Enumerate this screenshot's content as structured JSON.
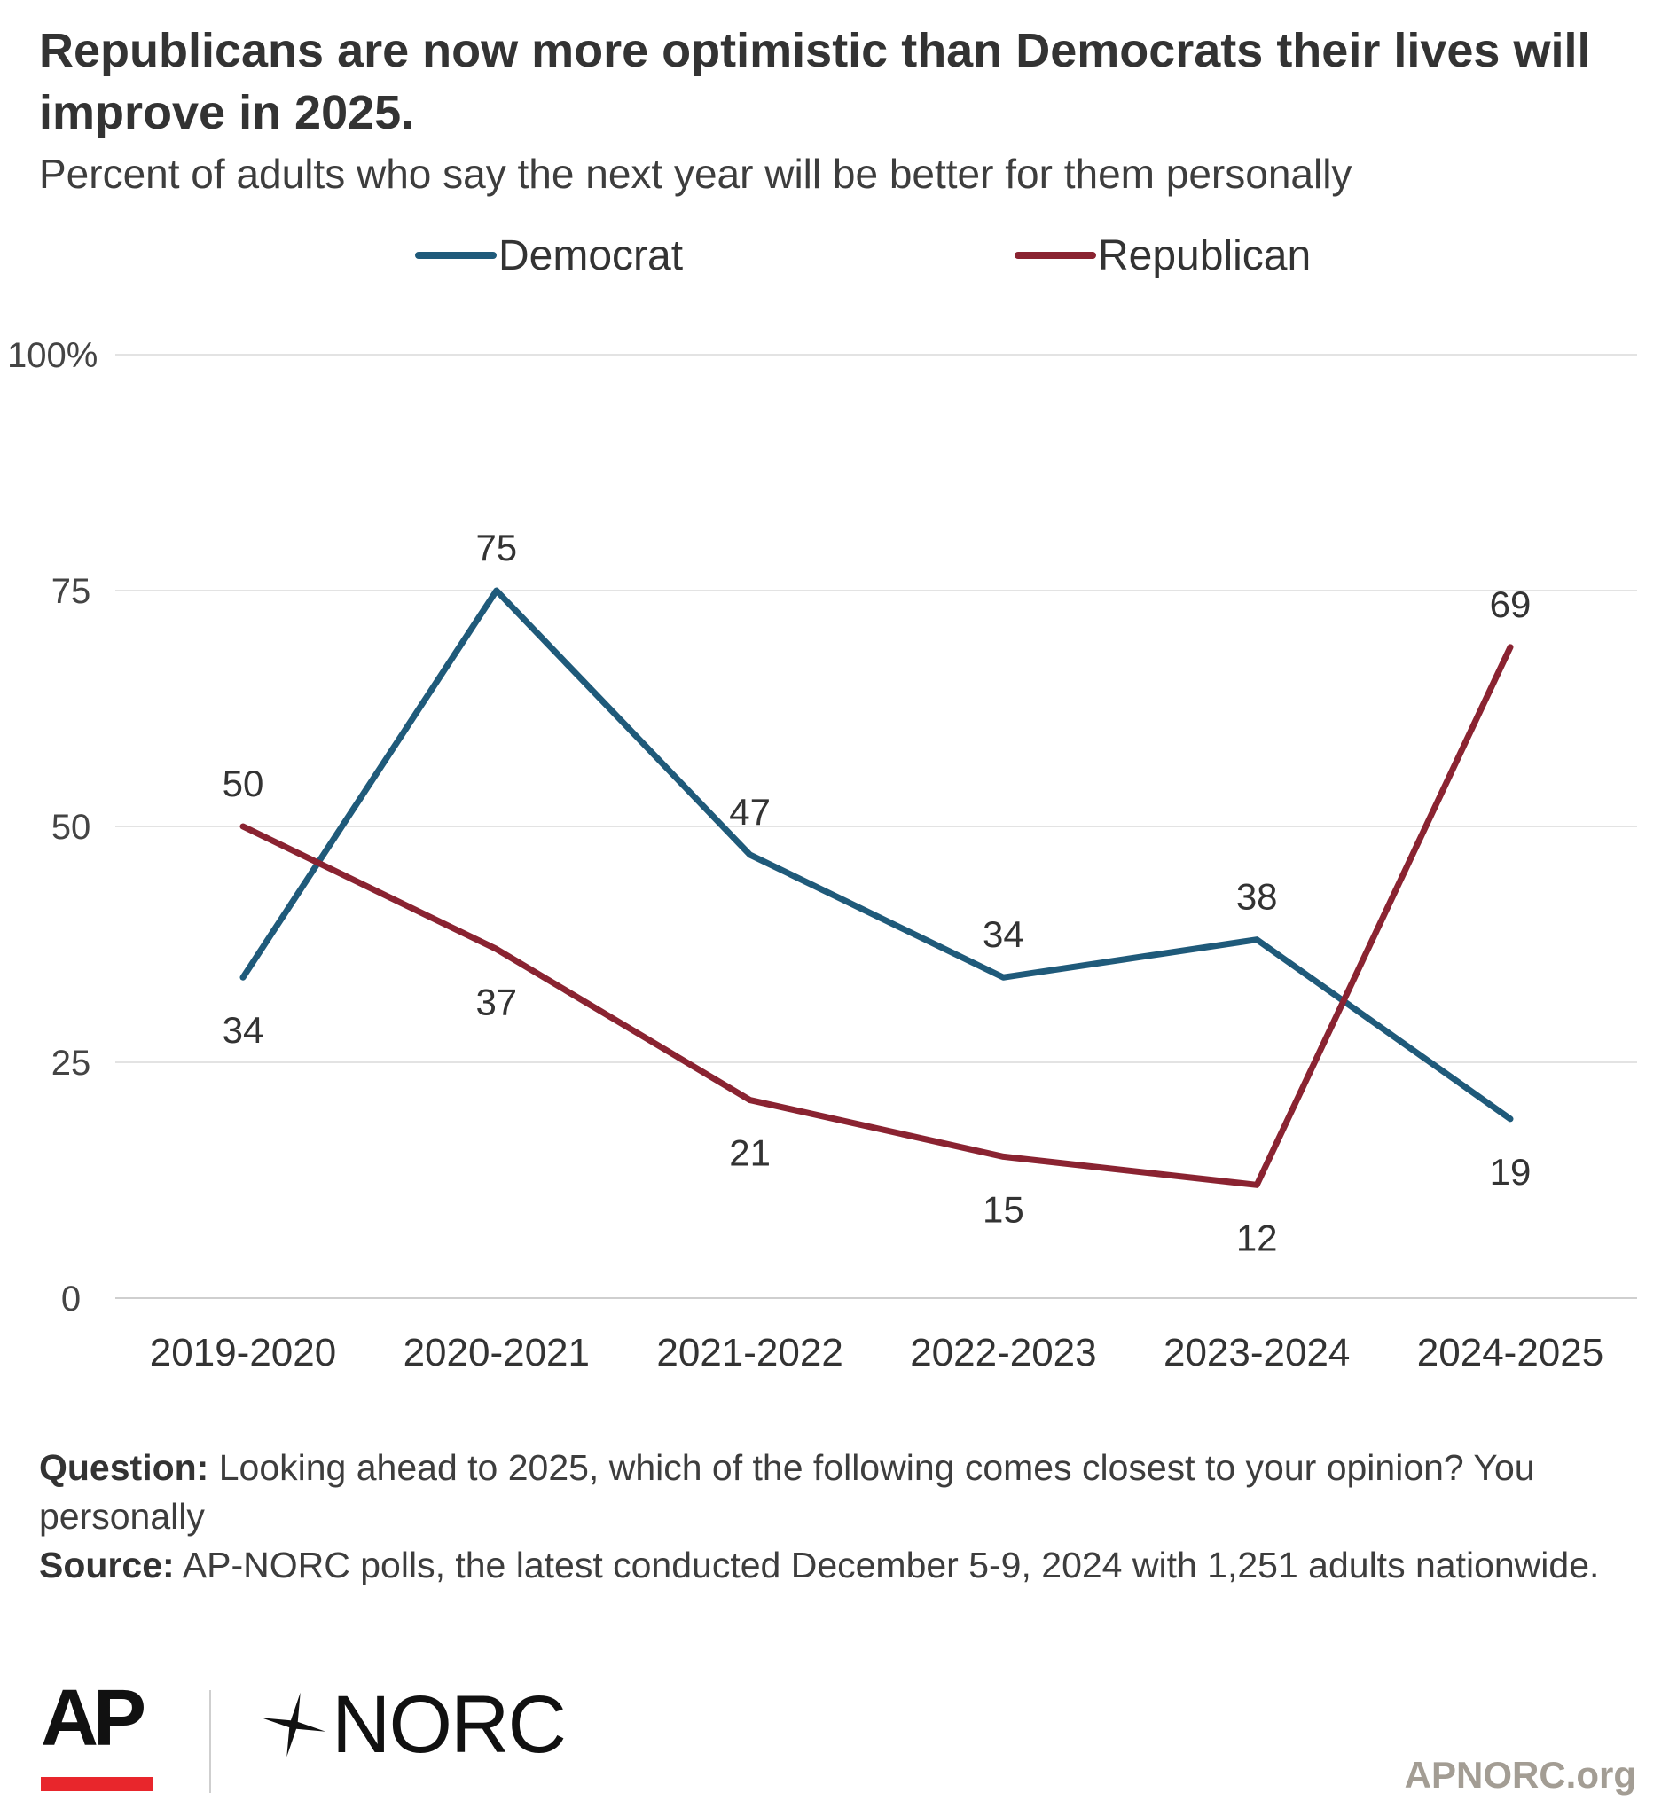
{
  "header": {
    "title": "Republicans are now more optimistic than Democrats their lives will improve in 2025.",
    "subtitle": "Percent of adults who say the next year will be better for them personally"
  },
  "legend": {
    "items": [
      {
        "label": "Democrat",
        "color": "#1f5a7a"
      },
      {
        "label": "Republican",
        "color": "#8a2331"
      }
    ]
  },
  "chart_data": {
    "type": "line",
    "categories": [
      "2019-2020",
      "2020-2021",
      "2021-2022",
      "2022-2023",
      "2023-2024",
      "2024-2025"
    ],
    "series": [
      {
        "name": "Democrat",
        "color": "#1f5a7a",
        "values": [
          34,
          75,
          47,
          34,
          38,
          19
        ]
      },
      {
        "name": "Republican",
        "color": "#8a2331",
        "values": [
          50,
          37,
          21,
          15,
          12,
          69
        ]
      }
    ],
    "yticks": [
      "0",
      "25",
      "50",
      "75",
      "100%"
    ],
    "ylim": [
      0,
      100
    ],
    "grid": true,
    "legend_position": "top"
  },
  "notes": {
    "question_label": "Question:",
    "question_text": " Looking ahead to 2025, which of the following comes closest to your opinion? You personally",
    "source_label": "Source:",
    "source_text": " AP-NORC polls, the latest conducted December 5-9, 2024 with 1,251 adults nationwide."
  },
  "footer": {
    "ap_logo": "AP",
    "norc_logo": "NORC",
    "site": "APNORC.org",
    "ap_red": "#e8262c"
  }
}
